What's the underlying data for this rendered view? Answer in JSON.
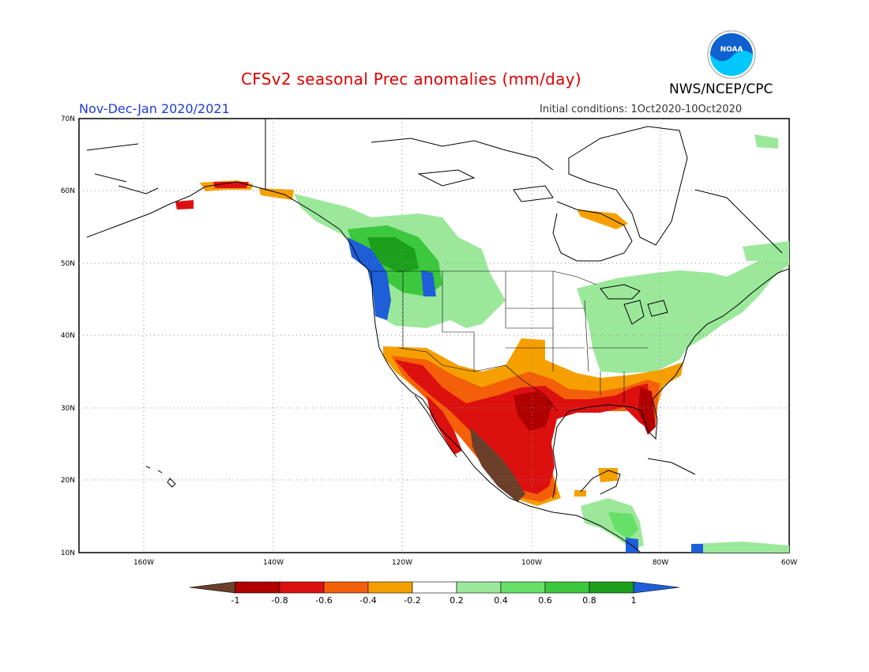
{
  "title": "CFSv2 seasonal Prec anomalies (mm/day)",
  "agency": "NWS/NCEP/CPC",
  "logo_text": "NOAA",
  "period": "Nov-Dec-Jan 2020/2021",
  "initial_conditions": "Initial conditions: 1Oct2020-10Oct2020",
  "map": {
    "lon_range": [
      -170,
      -60
    ],
    "lat_range": [
      10,
      70
    ],
    "lat_labels": [
      "70N",
      "60N",
      "50N",
      "40N",
      "30N",
      "20N",
      "10N"
    ],
    "lon_labels": [
      "160W",
      "140W",
      "120W",
      "100W",
      "80W",
      "60W"
    ],
    "grid": "dotted"
  },
  "colorbar": {
    "ticks": [
      "-1",
      "-0.8",
      "-0.6",
      "-0.4",
      "-0.2",
      "0.2",
      "0.4",
      "0.6",
      "0.8",
      "1"
    ],
    "colors": [
      "#6b3f2a",
      "#b00000",
      "#dd1010",
      "#f45f0a",
      "#f5a000",
      "#ffffff",
      "#9be89b",
      "#66e066",
      "#3cc83c",
      "#1ca01c",
      "#1e5fd9"
    ]
  },
  "colors": {
    "title": "#e00000",
    "period": "#1f3bd6",
    "noaa_blue": "#1060d0",
    "noaa_cyan": "#00c8ff"
  },
  "anomaly_regions": [
    {
      "name": "pacific-northwest-wet",
      "category": "0.2 to 0.4"
    },
    {
      "name": "pacific-northwest-very-wet",
      "category": "> 1"
    },
    {
      "name": "great-lakes-northeast-wet",
      "category": "0.2 to 0.4"
    },
    {
      "name": "southern-us-dry",
      "category": "-0.4 to -0.8"
    },
    {
      "name": "mexico-very-dry",
      "category": "< -1"
    },
    {
      "name": "central-america-wet",
      "category": "0.2 to 0.6"
    }
  ]
}
